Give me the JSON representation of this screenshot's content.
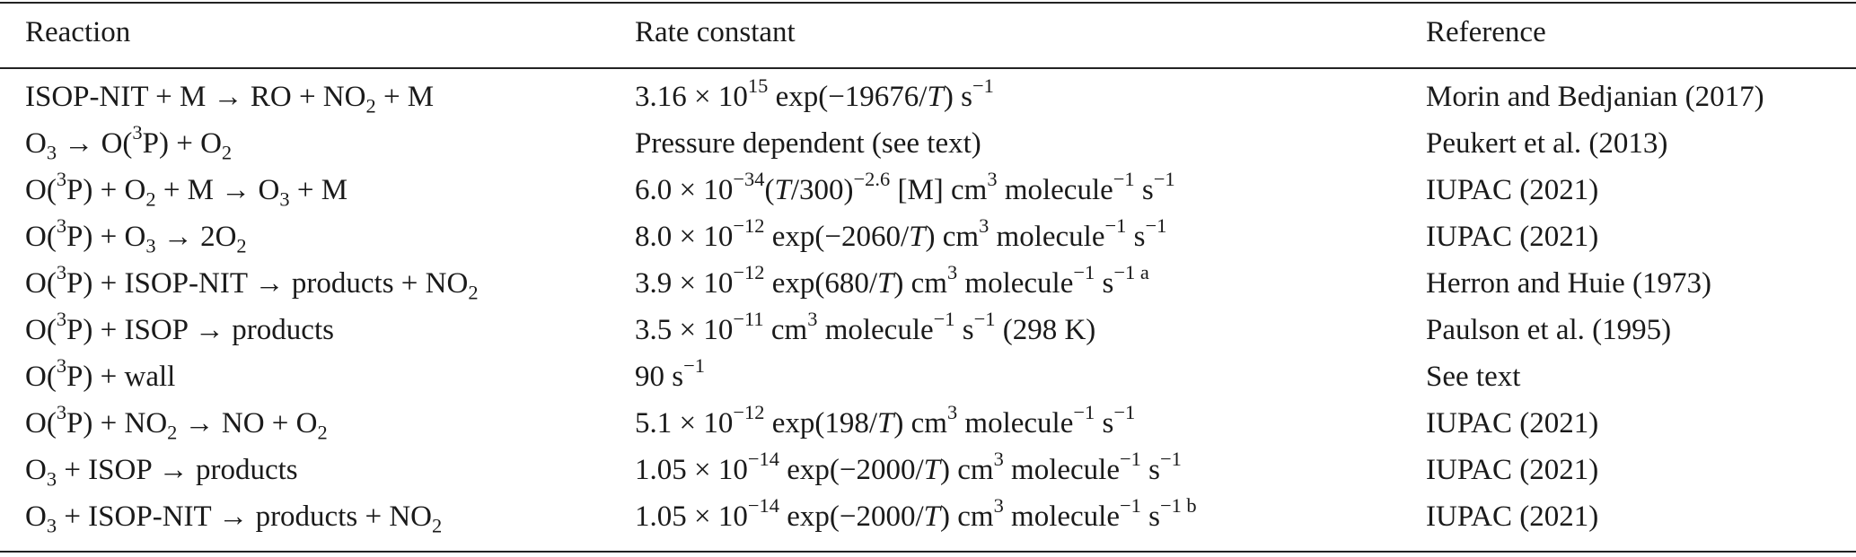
{
  "header": {
    "reaction": "Reaction",
    "rate_constant": "Rate constant",
    "reference": "Reference"
  },
  "rows": [
    {
      "reaction": [
        "ISOP-NIT + M → RO + NO",
        {
          "sub": "2"
        },
        " + M"
      ],
      "rate": [
        "3.16 × 10",
        {
          "sup": "15"
        },
        " exp(−19676/",
        {
          "i": "T"
        },
        ") s",
        {
          "sup": "−1"
        }
      ],
      "reference": "Morin and Bedjanian (2017)"
    },
    {
      "reaction": [
        "O",
        {
          "sub": "3"
        },
        " → O(",
        {
          "sup": "3"
        },
        "P) + O",
        {
          "sub": "2"
        }
      ],
      "rate": [
        "Pressure dependent (see text)"
      ],
      "reference": "Peukert et al. (2013)"
    },
    {
      "reaction": [
        "O(",
        {
          "sup": "3"
        },
        "P) + O",
        {
          "sub": "2"
        },
        " + M → O",
        {
          "sub": "3"
        },
        " + M"
      ],
      "rate": [
        "6.0 × 10",
        {
          "sup": "−34"
        },
        "(",
        {
          "i": "T"
        },
        "/300)",
        {
          "sup": "−2.6"
        },
        " [M] cm",
        {
          "sup": "3"
        },
        " molecule",
        {
          "sup": "−1"
        },
        " s",
        {
          "sup": "−1"
        }
      ],
      "reference": "IUPAC (2021)"
    },
    {
      "reaction": [
        "O(",
        {
          "sup": "3"
        },
        "P) + O",
        {
          "sub": "3"
        },
        " → 2O",
        {
          "sub": "2"
        }
      ],
      "rate": [
        "8.0 × 10",
        {
          "sup": "−12"
        },
        " exp(−2060/",
        {
          "i": "T"
        },
        ") cm",
        {
          "sup": "3"
        },
        " molecule",
        {
          "sup": "−1"
        },
        " s",
        {
          "sup": "−1"
        }
      ],
      "reference": "IUPAC (2021)"
    },
    {
      "reaction": [
        "O(",
        {
          "sup": "3"
        },
        "P) + ISOP-NIT → products + NO",
        {
          "sub": "2"
        }
      ],
      "rate": [
        "3.9 × 10",
        {
          "sup": "−12"
        },
        " exp(680/",
        {
          "i": "T"
        },
        ") cm",
        {
          "sup": "3"
        },
        " molecule",
        {
          "sup": "−1"
        },
        " s",
        {
          "sup": "−1 a"
        }
      ],
      "reference": "Herron and Huie (1973)"
    },
    {
      "reaction": [
        "O(",
        {
          "sup": "3"
        },
        "P) + ISOP → products"
      ],
      "rate": [
        "3.5 × 10",
        {
          "sup": "−11"
        },
        " cm",
        {
          "sup": "3"
        },
        " molecule",
        {
          "sup": "−1"
        },
        " s",
        {
          "sup": "−1"
        },
        "  (298 K)"
      ],
      "reference": "Paulson et al. (1995)"
    },
    {
      "reaction": [
        "O(",
        {
          "sup": "3"
        },
        "P) + wall"
      ],
      "rate": [
        "90 s",
        {
          "sup": "−1"
        }
      ],
      "reference": "See text"
    },
    {
      "reaction": [
        "O(",
        {
          "sup": "3"
        },
        "P) + NO",
        {
          "sub": "2"
        },
        " → NO + O",
        {
          "sub": "2"
        }
      ],
      "rate": [
        "5.1 × 10",
        {
          "sup": "−12"
        },
        " exp(198/",
        {
          "i": "T"
        },
        ") cm",
        {
          "sup": "3"
        },
        " molecule",
        {
          "sup": "−1"
        },
        " s",
        {
          "sup": "−1"
        }
      ],
      "reference": "IUPAC (2021)"
    },
    {
      "reaction": [
        "O",
        {
          "sub": "3"
        },
        " + ISOP → products"
      ],
      "rate": [
        "1.05 × 10",
        {
          "sup": "−14"
        },
        " exp(−2000/",
        {
          "i": "T"
        },
        ") cm",
        {
          "sup": "3"
        },
        " molecule",
        {
          "sup": "−1"
        },
        " s",
        {
          "sup": "−1"
        }
      ],
      "reference": "IUPAC (2021)"
    },
    {
      "reaction": [
        "O",
        {
          "sub": "3"
        },
        " + ISOP-NIT → products + NO",
        {
          "sub": "2"
        }
      ],
      "rate": [
        "1.05 × 10",
        {
          "sup": "−14"
        },
        " exp(−2000/",
        {
          "i": "T"
        },
        ") cm",
        {
          "sup": "3"
        },
        " molecule",
        {
          "sup": "−1"
        },
        " s",
        {
          "sup": "−1 b"
        }
      ],
      "reference": "IUPAC (2021)"
    }
  ]
}
